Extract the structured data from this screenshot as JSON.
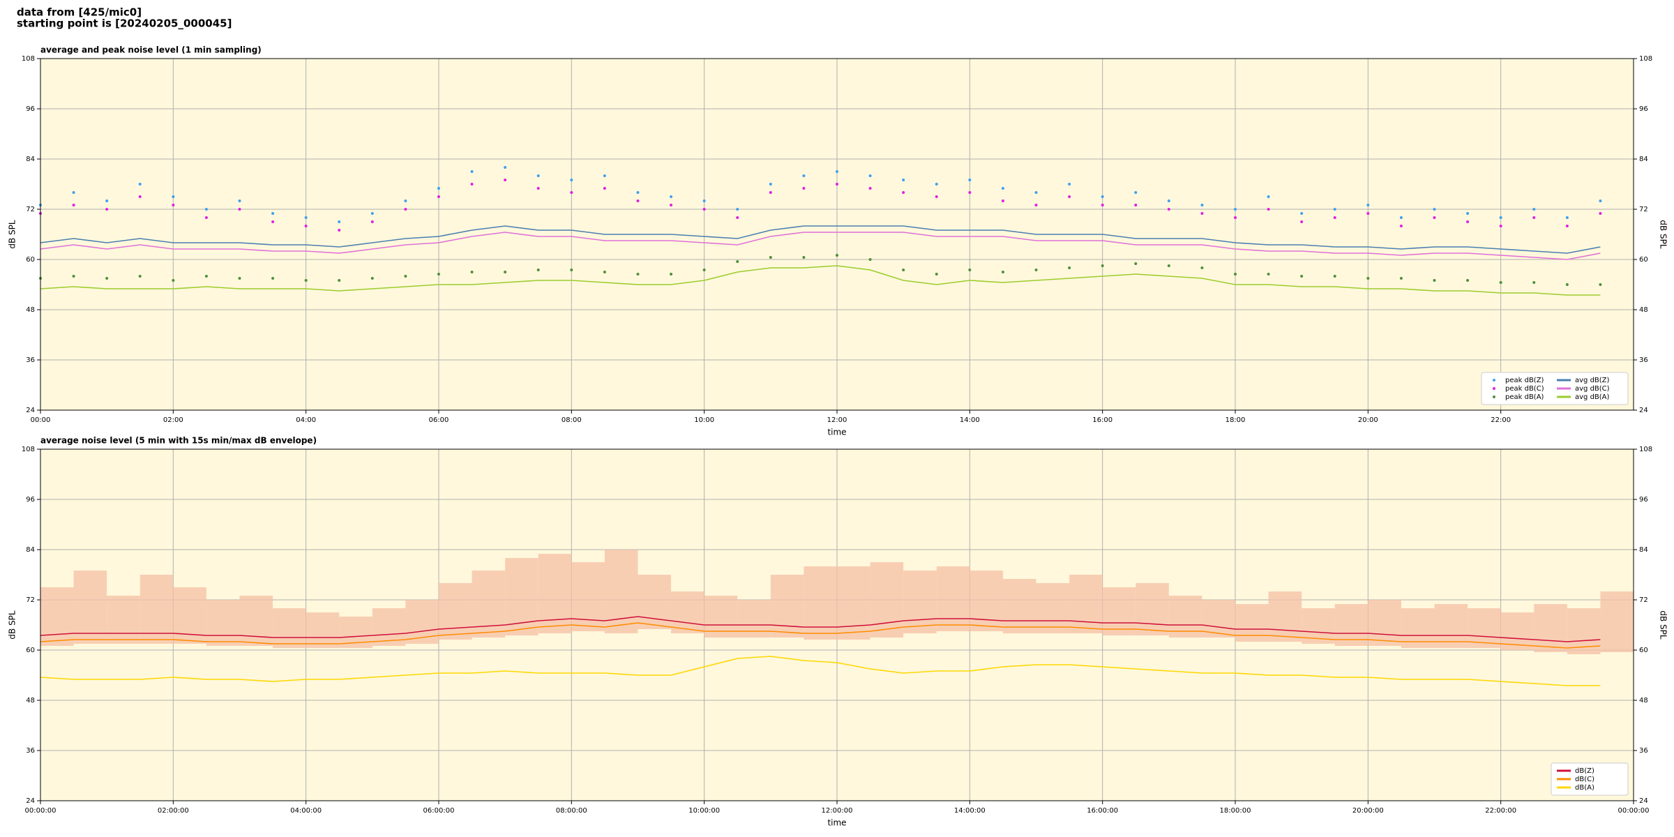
{
  "header": [
    "data from [425/mic0]",
    "starting point is [20240205_000045]"
  ],
  "chart_data": [
    {
      "type": "line",
      "title": "average and peak noise level (1 min sampling)",
      "xlabel": "time",
      "ylabel": "dB SPL",
      "background": "#fff8dc",
      "grid": true,
      "legend": "lower right",
      "legend_columns": 2,
      "xlim": [
        0,
        24
      ],
      "ylim": [
        24,
        108
      ],
      "xticks": [
        {
          "value": 0,
          "label": "00:00"
        },
        {
          "value": 2,
          "label": "02:00"
        },
        {
          "value": 4,
          "label": "04:00"
        },
        {
          "value": 6,
          "label": "06:00"
        },
        {
          "value": 8,
          "label": "08:00"
        },
        {
          "value": 10,
          "label": "10:00"
        },
        {
          "value": 12,
          "label": "12:00"
        },
        {
          "value": 14,
          "label": "14:00"
        },
        {
          "value": 16,
          "label": "16:00"
        },
        {
          "value": 18,
          "label": "18:00"
        },
        {
          "value": 20,
          "label": "20:00"
        },
        {
          "value": 22,
          "label": "22:00"
        }
      ],
      "yticks": [
        24,
        36,
        48,
        60,
        72,
        84,
        96,
        108
      ],
      "x": [
        0,
        0.5,
        1,
        1.5,
        2,
        2.5,
        3,
        3.5,
        4,
        4.5,
        5,
        5.5,
        6,
        6.5,
        7,
        7.5,
        8,
        8.5,
        9,
        9.5,
        10,
        10.5,
        11,
        11.5,
        12,
        12.5,
        13,
        13.5,
        14,
        14.5,
        15,
        15.5,
        16,
        16.5,
        17,
        17.5,
        18,
        18.5,
        19,
        19.5,
        20,
        20.5,
        21,
        21.5,
        22,
        22.5,
        23,
        23.5
      ],
      "series": [
        {
          "name": "peak dB(Z)",
          "mark": "dot",
          "color": "#3fa0f0",
          "values": [
            73,
            76,
            74,
            78,
            75,
            72,
            74,
            71,
            70,
            69,
            71,
            74,
            77,
            81,
            82,
            80,
            79,
            80,
            76,
            75,
            74,
            72,
            78,
            80,
            81,
            80,
            79,
            78,
            79,
            77,
            76,
            78,
            75,
            76,
            74,
            73,
            72,
            75,
            71,
            72,
            73,
            70,
            72,
            71,
            70,
            72,
            70,
            74
          ]
        },
        {
          "name": "peak dB(C)",
          "mark": "dot",
          "color": "#e020e0",
          "values": [
            71,
            73,
            72,
            75,
            73,
            70,
            72,
            69,
            68,
            67,
            69,
            72,
            75,
            78,
            79,
            77,
            76,
            77,
            74,
            73,
            72,
            70,
            76,
            77,
            78,
            77,
            76,
            75,
            76,
            74,
            73,
            75,
            73,
            73,
            72,
            71,
            70,
            72,
            69,
            70,
            71,
            68,
            70,
            69,
            68,
            70,
            68,
            71
          ]
        },
        {
          "name": "peak dB(A)",
          "mark": "dot",
          "color": "#4f8f3a",
          "values": [
            55.5,
            56,
            55.5,
            56,
            55,
            56,
            55.5,
            55.5,
            55,
            55,
            55.5,
            56,
            56.5,
            57,
            57,
            57.5,
            57.5,
            57,
            56.5,
            56.5,
            57.5,
            59.5,
            60.5,
            60.5,
            61,
            60,
            57.5,
            56.5,
            57.5,
            57,
            57.5,
            58,
            58.5,
            59,
            58.5,
            58,
            56.5,
            56.5,
            56,
            56,
            55.5,
            55.5,
            55,
            55,
            54.5,
            54.5,
            54,
            54
          ]
        },
        {
          "name": "avg dB(Z)",
          "mark": "line",
          "color": "#4a7fb0",
          "values": [
            64,
            65,
            64,
            65,
            64,
            64,
            64,
            63.5,
            63.5,
            63,
            64,
            65,
            65.5,
            67,
            68,
            67,
            67,
            66,
            66,
            66,
            65.5,
            65,
            67,
            68,
            68,
            68,
            68,
            67,
            67,
            67,
            66,
            66,
            66,
            65,
            65,
            65,
            64,
            63.5,
            63.5,
            63,
            63,
            62.5,
            63,
            63,
            62.5,
            62,
            61.5,
            63
          ]
        },
        {
          "name": "avg dB(C)",
          "mark": "line",
          "color": "#e070d8",
          "values": [
            62.5,
            63.5,
            62.5,
            63.5,
            62.5,
            62.5,
            62.5,
            62,
            62,
            61.5,
            62.5,
            63.5,
            64,
            65.5,
            66.5,
            65.5,
            65.5,
            64.5,
            64.5,
            64.5,
            64,
            63.5,
            65.5,
            66.5,
            66.5,
            66.5,
            66.5,
            65.5,
            65.5,
            65.5,
            64.5,
            64.5,
            64.5,
            63.5,
            63.5,
            63.5,
            62.5,
            62,
            62,
            61.5,
            61.5,
            61,
            61.5,
            61.5,
            61,
            60.5,
            60,
            61.5
          ]
        },
        {
          "name": "avg dB(A)",
          "mark": "line",
          "color": "#9ccc2c",
          "values": [
            53,
            53.5,
            53,
            53,
            53,
            53.5,
            53,
            53,
            53,
            52.5,
            53,
            53.5,
            54,
            54,
            54.5,
            55,
            55,
            54.5,
            54,
            54,
            55,
            57,
            58,
            58,
            58.5,
            57.5,
            55,
            54,
            55,
            54.5,
            55,
            55.5,
            56,
            56.5,
            56,
            55.5,
            54,
            54,
            53.5,
            53.5,
            53,
            53,
            52.5,
            52.5,
            52,
            52,
            51.5,
            51.5
          ]
        }
      ]
    },
    {
      "type": "line",
      "title": "average noise level (5 min with 15s min/max dB envelope)",
      "xlabel": "time",
      "ylabel": "dB SPL",
      "background": "#fff8dc",
      "grid": true,
      "legend": "lower right",
      "legend_columns": 1,
      "xlim": [
        0,
        24
      ],
      "ylim": [
        24,
        108
      ],
      "xticks": [
        {
          "value": 0,
          "label": "00:00:00"
        },
        {
          "value": 2,
          "label": "02:00:00"
        },
        {
          "value": 4,
          "label": "04:00:00"
        },
        {
          "value": 6,
          "label": "06:00:00"
        },
        {
          "value": 8,
          "label": "08:00:00"
        },
        {
          "value": 10,
          "label": "10:00:00"
        },
        {
          "value": 12,
          "label": "12:00:00"
        },
        {
          "value": 14,
          "label": "14:00:00"
        },
        {
          "value": 16,
          "label": "16:00:00"
        },
        {
          "value": 18,
          "label": "18:00:00"
        },
        {
          "value": 20,
          "label": "20:00:00"
        },
        {
          "value": 22,
          "label": "22:00:00"
        },
        {
          "value": 24,
          "label": "00:00:00"
        }
      ],
      "yticks": [
        24,
        36,
        48,
        60,
        72,
        84,
        96,
        108
      ],
      "x": [
        0,
        0.5,
        1,
        1.5,
        2,
        2.5,
        3,
        3.5,
        4,
        4.5,
        5,
        5.5,
        6,
        6.5,
        7,
        7.5,
        8,
        8.5,
        9,
        9.5,
        10,
        10.5,
        11,
        11.5,
        12,
        12.5,
        13,
        13.5,
        14,
        14.5,
        15,
        15.5,
        16,
        16.5,
        17,
        17.5,
        18,
        18.5,
        19,
        19.5,
        20,
        20.5,
        21,
        21.5,
        22,
        22.5,
        23,
        23.5
      ],
      "envelope": {
        "color": "#f5c0a5",
        "high": [
          75,
          79,
          73,
          78,
          75,
          72,
          73,
          70,
          69,
          68,
          70,
          72,
          76,
          79,
          82,
          83,
          81,
          84,
          78,
          74,
          73,
          72,
          78,
          80,
          80,
          81,
          79,
          80,
          79,
          77,
          76,
          78,
          75,
          76,
          73,
          72,
          71,
          74,
          70,
          71,
          72,
          70,
          71,
          70,
          69,
          71,
          70,
          74
        ],
        "low": [
          61,
          61.5,
          61.5,
          61.5,
          61.5,
          61,
          61,
          60.5,
          60.5,
          60.5,
          61,
          61.5,
          62.5,
          63,
          63.5,
          64,
          64.5,
          64,
          65,
          64,
          63,
          63,
          63,
          62.5,
          62.5,
          63,
          64,
          64.5,
          64.5,
          64,
          64,
          64,
          63.5,
          63.5,
          63,
          63,
          62,
          62,
          61.5,
          61,
          61,
          60.5,
          60.5,
          60.5,
          60,
          59.5,
          59,
          59.5
        ]
      },
      "series": [
        {
          "name": "dB(Z)",
          "mark": "line",
          "color": "#d0103a",
          "values": [
            63.5,
            64,
            64,
            64,
            64,
            63.5,
            63.5,
            63,
            63,
            63,
            63.5,
            64,
            65,
            65.5,
            66,
            67,
            67.5,
            67,
            68,
            67,
            66,
            66,
            66,
            65.5,
            65.5,
            66,
            67,
            67.5,
            67.5,
            67,
            67,
            67,
            66.5,
            66.5,
            66,
            66,
            65,
            65,
            64.5,
            64,
            64,
            63.5,
            63.5,
            63.5,
            63,
            62.5,
            62,
            62.5
          ]
        },
        {
          "name": "dB(C)",
          "mark": "line",
          "color": "#ff8c00",
          "values": [
            62,
            62.5,
            62.5,
            62.5,
            62.5,
            62,
            62,
            61.5,
            61.5,
            61.5,
            62,
            62.5,
            63.5,
            64,
            64.5,
            65.5,
            66,
            65.5,
            66.5,
            65.5,
            64.5,
            64.5,
            64.5,
            64,
            64,
            64.5,
            65.5,
            66,
            66,
            65.5,
            65.5,
            65.5,
            65,
            65,
            64.5,
            64.5,
            63.5,
            63.5,
            63,
            62.5,
            62.5,
            62,
            62,
            62,
            61.5,
            61,
            60.5,
            61
          ]
        },
        {
          "name": "dB(A)",
          "mark": "line",
          "color": "#ffd700",
          "values": [
            53.5,
            53,
            53,
            53,
            53.5,
            53,
            53,
            52.5,
            53,
            53,
            53.5,
            54,
            54.5,
            54.5,
            55,
            54.5,
            54.5,
            54.5,
            54,
            54,
            56,
            58,
            58.5,
            57.5,
            57,
            55.5,
            54.5,
            55,
            55,
            56,
            56.5,
            56.5,
            56,
            55.5,
            55,
            54.5,
            54.5,
            54,
            54,
            53.5,
            53.5,
            53,
            53,
            53,
            52.5,
            52,
            51.5,
            51.5
          ]
        }
      ]
    }
  ]
}
